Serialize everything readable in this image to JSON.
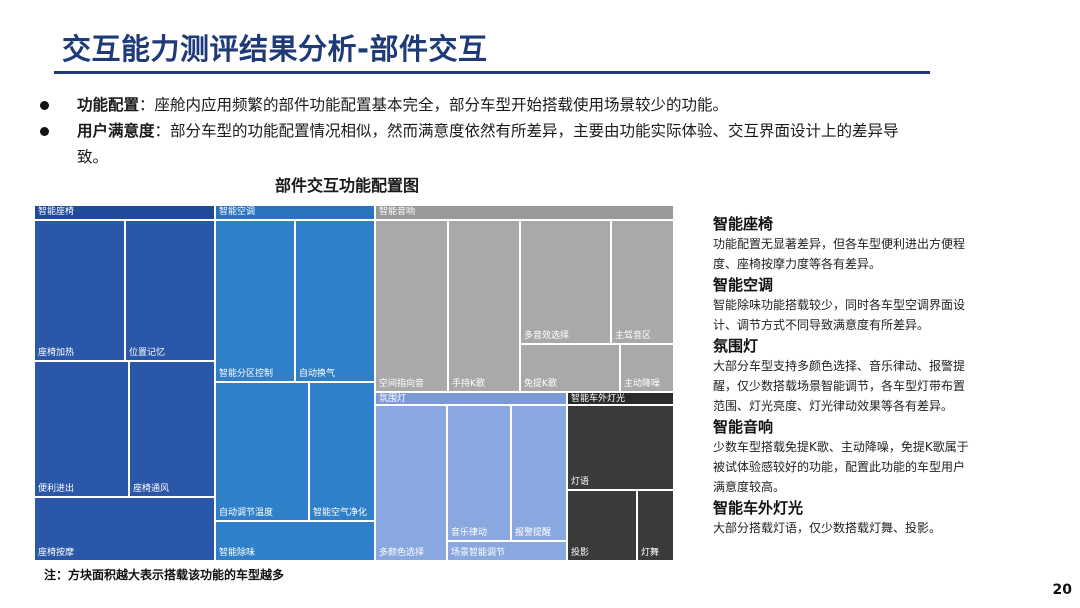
{
  "title": "交互能力测评结果分析-部件交互",
  "bullets": [
    {
      "label": "功能配置",
      "text": "：座舱内应用频繁的部件功能配置基本完全，部分车型开始搭载使用场景较少的功能。"
    },
    {
      "label": "用户满意度",
      "text": "：部分车型的功能配置情况相似，然而满意度依然有所差异，主要由功能实际体验、交互界面设计上的差异导",
      "text2": "致。"
    }
  ],
  "chart_data": {
    "type": "treemap",
    "title": "部件交互功能配置图",
    "groups": [
      {
        "name": "智能座椅",
        "color": "#2b57a8",
        "items": [
          "座椅加热",
          "位置记忆",
          "便利进出",
          "座椅通风",
          "座椅按摩"
        ]
      },
      {
        "name": "智能空调",
        "color": "#2f80c8",
        "items": [
          "智能分区控制",
          "自动换气",
          "自动调节温度",
          "智能空气净化",
          "智能除味"
        ]
      },
      {
        "name": "智能音响",
        "color": "#a9a9a9",
        "items": [
          "空间指向音",
          "手持K歌",
          "多音效选择",
          "主驾音区",
          "免提K歌",
          "主动降噪"
        ]
      },
      {
        "name": "氛围灯",
        "color": "#8aa8e0",
        "items": [
          "多颜色选择",
          "音乐律动",
          "报警提醒",
          "场景智能调节"
        ]
      },
      {
        "name": "智能车外灯光",
        "color": "#3a3a3a",
        "items": [
          "灯语",
          "投影",
          "灯舞"
        ]
      }
    ],
    "note": "注：方块面积越大表示搭载该功能的车型越多"
  },
  "sidebar": [
    {
      "heading": "智能座椅",
      "lines": [
        "功能配置无显著差异，但各车型便利进出方便程",
        "度、座椅按摩力度等各有差异。"
      ]
    },
    {
      "heading": "智能空调",
      "lines": [
        "智能除味功能搭载较少，同时各车型空调界面设",
        "计、调节方式不同导致满意度有所差异。"
      ]
    },
    {
      "heading": "氛围灯",
      "lines": [
        "大部分车型支持多颜色选择、音乐律动、报警提",
        "醒，仅少数搭载场景智能调节，各车型灯带布置",
        "范围、灯光亮度、灯光律动效果等各有差异。"
      ]
    },
    {
      "heading": "智能音响",
      "lines": [
        "少数车型搭载免提K歌、主动降噪，免提K歌属于",
        "被试体验感较好的功能，配置此功能的车型用户",
        "满意度较高。"
      ]
    },
    {
      "heading": "智能车外灯光",
      "lines": [
        "大部分搭载灯语，仅少数搭载灯舞、投影。"
      ]
    }
  ],
  "page_number": "20"
}
